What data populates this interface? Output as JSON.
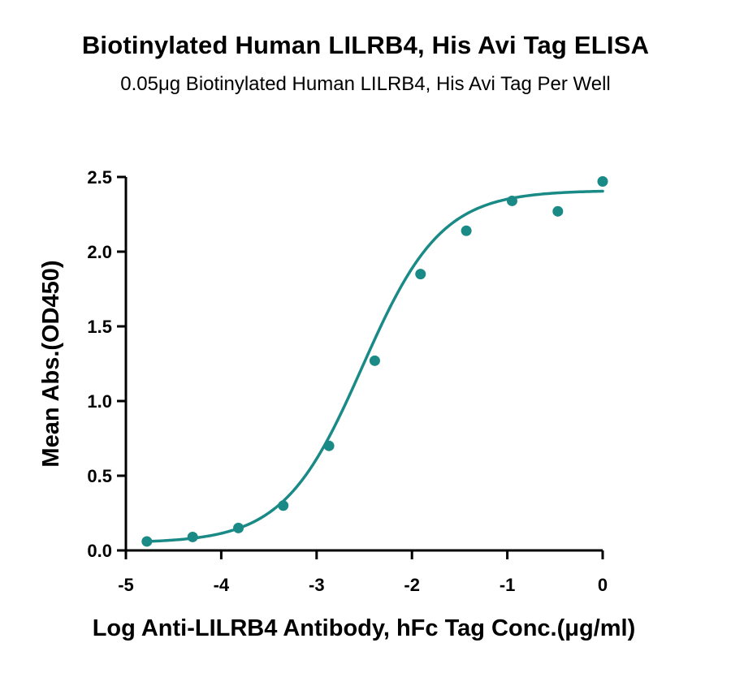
{
  "chart_data": {
    "type": "scatter",
    "title": "Biotinylated Human LILRB4, His Avi Tag ELISA",
    "subtitle": "0.05μg Biotinylated Human LILRB4, His Avi Tag Per Well",
    "xlabel": "Log Anti-LILRB4 Antibody, hFc Tag Conc.(μg/ml)",
    "ylabel": "Mean Abs.(OD450)",
    "xlim": [
      -5,
      0
    ],
    "ylim": [
      0,
      2.5
    ],
    "x_ticks": [
      -5,
      -4,
      -3,
      -2,
      -1,
      0
    ],
    "x_tick_labels": [
      "-5",
      "-4",
      "-3",
      "-2",
      "-1",
      "0"
    ],
    "y_ticks": [
      0,
      0.5,
      1.0,
      1.5,
      2.0,
      2.5
    ],
    "y_tick_labels": [
      "0.0",
      "0.5",
      "1.0",
      "1.5",
      "2.0",
      "2.5"
    ],
    "grid": false,
    "legend": "none",
    "color": "#1a8a87",
    "series": [
      {
        "points": [
          {
            "x": -4.78,
            "y": 0.06
          },
          {
            "x": -4.3,
            "y": 0.09
          },
          {
            "x": -3.82,
            "y": 0.15
          },
          {
            "x": -3.35,
            "y": 0.3
          },
          {
            "x": -2.87,
            "y": 0.7
          },
          {
            "x": -2.39,
            "y": 1.27
          },
          {
            "x": -1.91,
            "y": 1.85
          },
          {
            "x": -1.43,
            "y": 2.14
          },
          {
            "x": -0.95,
            "y": 2.34
          },
          {
            "x": -0.47,
            "y": 2.27
          },
          {
            "x": 0.0,
            "y": 2.47
          }
        ],
        "fit": {
          "model": "4PL",
          "bottom": 0.05,
          "top": 2.41,
          "logEC50": -2.52,
          "hill": 1.05,
          "x_range": [
            -4.78,
            0.0
          ]
        }
      }
    ]
  }
}
